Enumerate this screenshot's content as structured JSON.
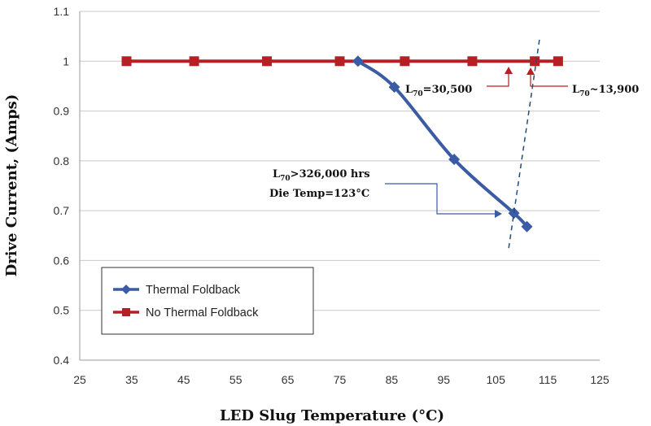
{
  "chart_data": {
    "type": "line",
    "xlabel": "LED Slug Temperature (°C)",
    "ylabel": "Drive Current, (Amps)",
    "xlim": [
      25,
      125
    ],
    "ylim": [
      0.4,
      1.1
    ],
    "x_ticks": [
      "25",
      "35",
      "45",
      "55",
      "65",
      "75",
      "85",
      "95",
      "105",
      "115",
      "125"
    ],
    "y_ticks": [
      "0.4",
      "0.5",
      "0.6",
      "0.7",
      "0.8",
      "0.9",
      "1",
      "1.1"
    ],
    "grid": "horizontal",
    "legend_position": "bottom-left",
    "series": [
      {
        "name": "Thermal Foldback",
        "color": "#3b5ba5",
        "marker": "diamond",
        "points": [
          [
            78.5,
            1.0
          ],
          [
            85.5,
            0.948
          ],
          [
            97,
            0.803
          ],
          [
            108.5,
            0.695
          ],
          [
            111,
            0.668
          ]
        ]
      },
      {
        "name": "No Thermal Foldback",
        "color": "#b52025",
        "marker": "square",
        "points": [
          [
            34,
            1.0
          ],
          [
            47,
            1.0
          ],
          [
            61,
            1.0
          ],
          [
            75,
            1.0
          ],
          [
            87.5,
            1.0
          ],
          [
            100.5,
            1.0
          ],
          [
            112.5,
            1.0
          ],
          [
            117,
            1.0
          ]
        ]
      }
    ],
    "reference_line": {
      "style": "dashed",
      "color": "#1f4e79",
      "from": [
        107.5,
        0.625
      ],
      "to": [
        113.5,
        1.05
      ]
    },
    "annotations": [
      {
        "prefix": "L",
        "sub": "70",
        "text": "=30,500"
      },
      {
        "prefix": "L",
        "sub": "70",
        "text": "~13,900"
      },
      {
        "prefix": "L",
        "sub": "70",
        "text": ">326,000 hrs"
      },
      {
        "text": "Die Temp=123°C"
      }
    ]
  }
}
